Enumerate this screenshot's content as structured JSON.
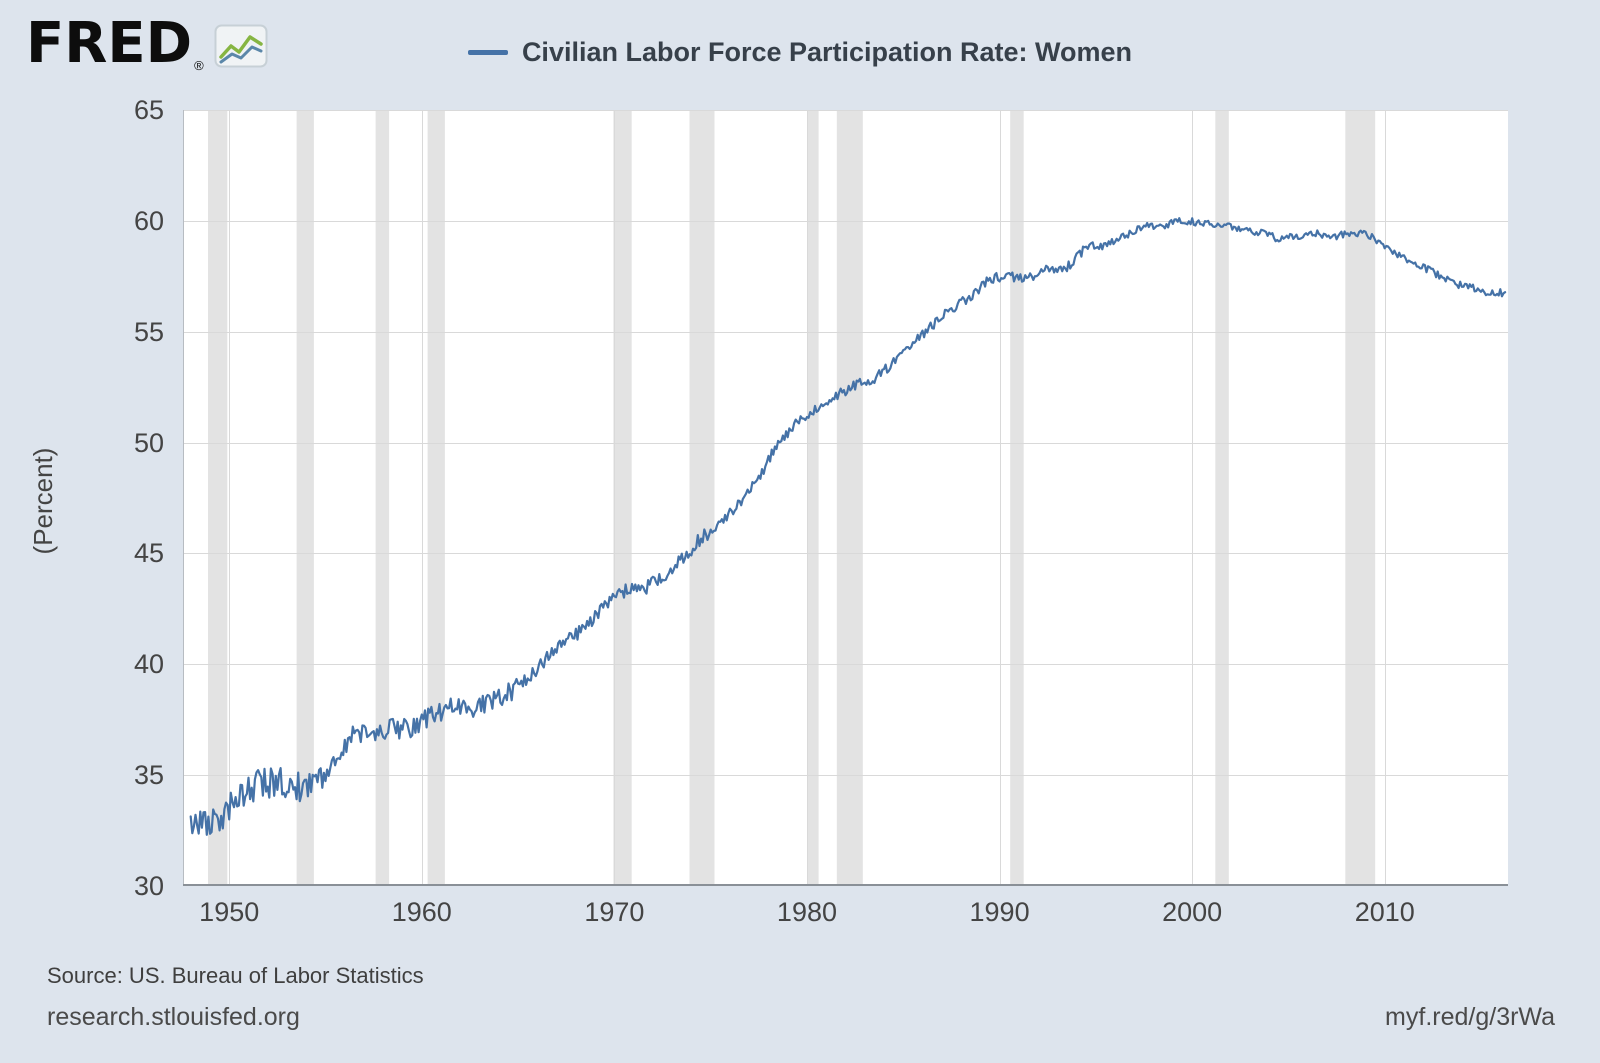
{
  "header": {
    "logo_text": "FRED",
    "logo_reg": "®",
    "legend_label": "Civilian Labor Force Participation Rate: Women"
  },
  "footer": {
    "source": "Source: US. Bureau of Labor Statistics",
    "site": "research.stlouisfed.org",
    "short_url": "myf.red/g/3rWa"
  },
  "colors": {
    "background": "#dde4ed",
    "plot_background": "#ffffff",
    "line": "#4572a7",
    "recession_band": "#e3e3e3",
    "gridline": "#d9d9d9",
    "axis_text": "#444444",
    "logo_green": "#86b542",
    "logo_blue": "#5b87a9"
  },
  "chart_data": {
    "type": "line",
    "title": "Civilian Labor Force Participation Rate: Women",
    "ylabel": "(Percent)",
    "xlabel": "",
    "frequency": "monthly",
    "x_range": [
      1947.6,
      2016.4
    ],
    "ylim": [
      30,
      65
    ],
    "y_ticks": [
      30,
      35,
      40,
      45,
      50,
      55,
      60,
      65
    ],
    "x_ticks": [
      1950,
      1960,
      1970,
      1980,
      1990,
      2000,
      2010
    ],
    "grid": true,
    "legend_position": "top-center",
    "series": [
      {
        "name": "Civilian Labor Force Participation Rate: Women",
        "start_year": 1948,
        "annual_values": [
          32.7,
          33.1,
          33.9,
          34.6,
          34.7,
          34.4,
          34.6,
          35.7,
          36.9,
          36.9,
          37.1,
          37.1,
          37.7,
          38.1,
          37.9,
          38.3,
          38.7,
          39.3,
          40.3,
          41.1,
          41.6,
          42.7,
          43.3,
          43.4,
          43.9,
          44.7,
          45.7,
          46.3,
          47.3,
          48.4,
          50.0,
          50.9,
          51.5,
          52.1,
          52.6,
          52.9,
          53.6,
          54.5,
          55.3,
          56.0,
          56.6,
          57.4,
          57.5,
          57.4,
          57.8,
          57.9,
          58.8,
          58.9,
          59.3,
          59.8,
          59.8,
          60.0,
          59.9,
          59.8,
          59.6,
          59.5,
          59.2,
          59.3,
          59.4,
          59.3,
          59.5,
          59.2,
          58.6,
          58.1,
          57.7,
          57.2,
          57.0,
          56.7,
          56.8
        ]
      }
    ],
    "recessions": [
      [
        1948.9,
        1949.9
      ],
      [
        1953.5,
        1954.4
      ],
      [
        1957.6,
        1958.3
      ],
      [
        1960.3,
        1961.2
      ],
      [
        1969.95,
        1970.9
      ],
      [
        1973.9,
        1975.2
      ],
      [
        1980.0,
        1980.6
      ],
      [
        1981.55,
        1982.9
      ],
      [
        1990.55,
        1991.25
      ],
      [
        2001.2,
        2001.9
      ],
      [
        2007.95,
        2009.5
      ]
    ]
  }
}
